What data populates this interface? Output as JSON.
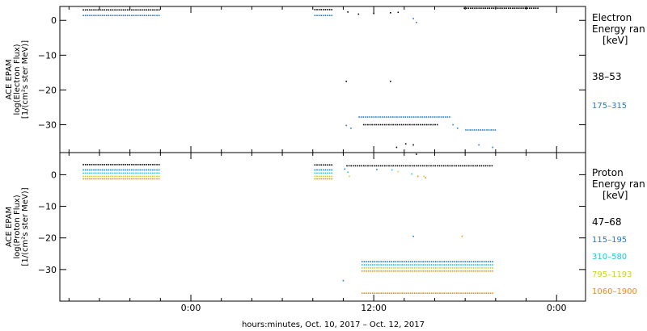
{
  "chart_data": [
    {
      "type": "scatter",
      "panel": "electron",
      "ylabel": [
        "ACE EPAM",
        "log(Electron Flux)",
        "[1/(cm²s ster MeV)]"
      ],
      "yticks": [
        0,
        -10,
        -20,
        -30
      ],
      "ytick_labels": [
        "0",
        "−10",
        "−20",
        "−30"
      ],
      "ylim": [
        -38,
        4
      ],
      "legend_title": [
        "Electron",
        "Energy ran",
        "[keV]"
      ],
      "series": [
        {
          "name": "38–53",
          "color": "#000000",
          "segments": [
            [
              -7.1,
              -2.1,
              3.0
            ],
            [
              8.1,
              9.3,
              3.1
            ],
            [
              17.9,
              22.8,
              3.5
            ],
            [
              11.3,
              16.2,
              -30.0
            ]
          ],
          "points": [
            [
              10.3,
              2.4
            ],
            [
              11.0,
              1.8
            ],
            [
              12.0,
              2.0
            ],
            [
              13.1,
              2.2
            ],
            [
              13.6,
              2.3
            ],
            [
              10.2,
              -17.5
            ],
            [
              13.1,
              -17.5
            ],
            [
              14.1,
              -35.5
            ],
            [
              14.6,
              -35.8
            ],
            [
              13.5,
              -36.5
            ]
          ]
        },
        {
          "name": "175–315",
          "color": "#1f78d4",
          "segments": [
            [
              -7.1,
              -2.1,
              1.4
            ],
            [
              8.1,
              9.3,
              1.4
            ],
            [
              11.0,
              17.0,
              -27.8
            ],
            [
              18.0,
              20.0,
              -31.5
            ]
          ],
          "points": [
            [
              10.2,
              -30.2
            ],
            [
              10.5,
              -31.0
            ],
            [
              14.6,
              0.5
            ],
            [
              14.8,
              -0.6
            ],
            [
              17.2,
              -30.0
            ],
            [
              17.5,
              -31.0
            ],
            [
              19.8,
              -36.5
            ],
            [
              18.9,
              -35.8
            ]
          ]
        }
      ]
    },
    {
      "type": "scatter",
      "panel": "proton",
      "ylabel": [
        "ACE EPAM",
        "log(Proton Flux)",
        "[1/(cm²s ster MeV)]"
      ],
      "yticks": [
        0,
        -10,
        -20,
        -30
      ],
      "ytick_labels": [
        "0",
        "−10",
        "−20",
        "−30"
      ],
      "ylim": [
        -40,
        7
      ],
      "legend_title": [
        "Proton",
        "Energy ran",
        "[keV]"
      ],
      "xticks": [
        0,
        12,
        24
      ],
      "xtick_labels": [
        "0:00",
        "12:00",
        "0:00"
      ],
      "xlim": [
        -8.6,
        25.9
      ],
      "xlabel": "hours:minutes, Oct. 10, 2017 – Oct. 12, 2017",
      "series": [
        {
          "name": "47–68",
          "color": "#000000",
          "segments": [
            [
              -7.1,
              -2.1,
              3.2
            ],
            [
              8.1,
              9.3,
              3.1
            ],
            [
              10.2,
              19.8,
              2.8
            ]
          ],
          "points": [
            [
              14.8,
              6.5
            ]
          ]
        },
        {
          "name": "115–195",
          "color": "#1f78d4",
          "segments": [
            [
              -7.1,
              -2.1,
              1.5
            ],
            [
              8.1,
              9.3,
              1.5
            ],
            [
              11.2,
              19.8,
              -27.5
            ]
          ],
          "points": [
            [
              10.1,
              1.8
            ],
            [
              12.2,
              1.6
            ],
            [
              10.0,
              -33.5
            ],
            [
              14.6,
              -19.5
            ]
          ]
        },
        {
          "name": "310–580",
          "color": "#17c9d9",
          "segments": [
            [
              -7.1,
              -2.1,
              0.5
            ],
            [
              8.1,
              9.3,
              0.5
            ],
            [
              11.2,
              19.8,
              -28.5
            ]
          ],
          "points": [
            [
              10.3,
              0.8
            ],
            [
              13.2,
              1.5
            ],
            [
              14.5,
              0.2
            ]
          ]
        },
        {
          "name": "795–1193",
          "color": "#c6d610",
          "segments": [
            [
              -7.1,
              -2.1,
              -0.5
            ],
            [
              8.1,
              9.3,
              -0.5
            ],
            [
              11.2,
              19.8,
              -29.5
            ]
          ],
          "points": [
            [
              10.4,
              -0.5
            ],
            [
              13.6,
              1.0
            ],
            [
              15.3,
              -0.5
            ]
          ]
        },
        {
          "name": "1060–1900",
          "color": "#f08c00",
          "segments": [
            [
              -7.1,
              -2.1,
              -1.3
            ],
            [
              8.1,
              9.3,
              -1.3
            ],
            [
              11.2,
              19.8,
              -30.5
            ],
            [
              11.2,
              19.8,
              -37.5
            ]
          ],
          "points": [
            [
              14.9,
              -0.5
            ],
            [
              15.4,
              -1.0
            ],
            [
              17.8,
              -19.5
            ]
          ]
        }
      ]
    }
  ]
}
